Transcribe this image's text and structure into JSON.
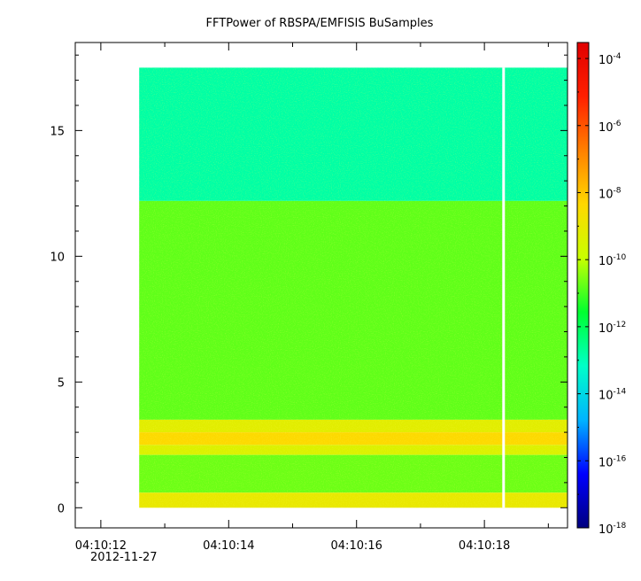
{
  "chart_data": {
    "type": "heatmap",
    "title": "FFTPower of RBSPA/EMFISIS  BuSamples",
    "xlabel": "",
    "ylabel": "",
    "x_axis": {
      "type": "time",
      "ticks": [
        "04:10:12",
        "04:10:14",
        "04:10:16",
        "04:10:18"
      ],
      "date_label": "2012-11-27",
      "range": [
        "04:10:11.6",
        "04:10:19.3"
      ],
      "data_start": "04:10:12.6",
      "data_end": "04:10:19.3",
      "gap_at": "04:10:18.3"
    },
    "y_axis": {
      "range": [
        -0.8,
        18.5
      ],
      "ticks": [
        0,
        5,
        10,
        15
      ],
      "tick_labels": [
        "0",
        "5",
        "10",
        "15"
      ],
      "data_max": 17.5
    },
    "colorbar": {
      "scale": "log",
      "range": [
        1e-18,
        0.0003
      ],
      "tick_bases": [
        "10",
        "10",
        "10",
        "10",
        "10",
        "10",
        "10",
        "10"
      ],
      "tick_exponents": [
        "-4",
        "-6",
        "-8",
        "-10",
        "-12",
        "-14",
        "-16",
        "-18"
      ],
      "colors": [
        "#00007f",
        "#0000ff",
        "#00b4ff",
        "#00ffc8",
        "#00ff30",
        "#c8ff00",
        "#ffd800",
        "#ff8000",
        "#ff2000",
        "#e00000"
      ]
    },
    "bands": [
      {
        "y_from": 12.2,
        "y_to": 17.5,
        "level": -12.8
      },
      {
        "y_from": 3.5,
        "y_to": 12.2,
        "level": -10.8
      },
      {
        "y_from": 3.0,
        "y_to": 3.5,
        "level": -9.2
      },
      {
        "y_from": 2.5,
        "y_to": 3.0,
        "level": -8.4
      },
      {
        "y_from": 2.1,
        "y_to": 2.5,
        "level": -9.4
      },
      {
        "y_from": 0.6,
        "y_to": 2.1,
        "level": -10.7
      },
      {
        "y_from": 0.0,
        "y_to": 0.6,
        "level": -9.0
      }
    ],
    "grid": false,
    "legend": "none"
  }
}
